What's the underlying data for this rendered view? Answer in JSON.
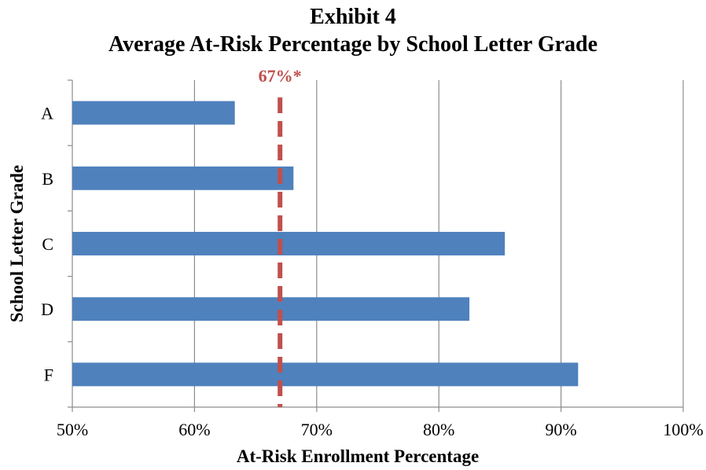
{
  "chart_data": {
    "type": "bar",
    "orientation": "horizontal",
    "title": "Exhibit 4",
    "subtitle": "Average At-Risk Percentage by School Letter Grade",
    "xlabel": "At-Risk Enrollment Percentage",
    "ylabel": "School Letter Grade",
    "categories": [
      "A",
      "B",
      "C",
      "D",
      "F"
    ],
    "values": [
      63.3,
      68.1,
      85.4,
      82.5,
      91.4
    ],
    "value_format": "percent",
    "xlim": [
      50,
      100
    ],
    "xticks": [
      50,
      60,
      70,
      80,
      90,
      100
    ],
    "xtick_labels": [
      "50%",
      "60%",
      "70%",
      "80%",
      "90%",
      "100%"
    ],
    "grid": "vertical",
    "bar_color": "#4f81bd",
    "reference_line": {
      "value": 67,
      "label": "67%*",
      "color": "#c0504d",
      "style": "dashed"
    }
  }
}
